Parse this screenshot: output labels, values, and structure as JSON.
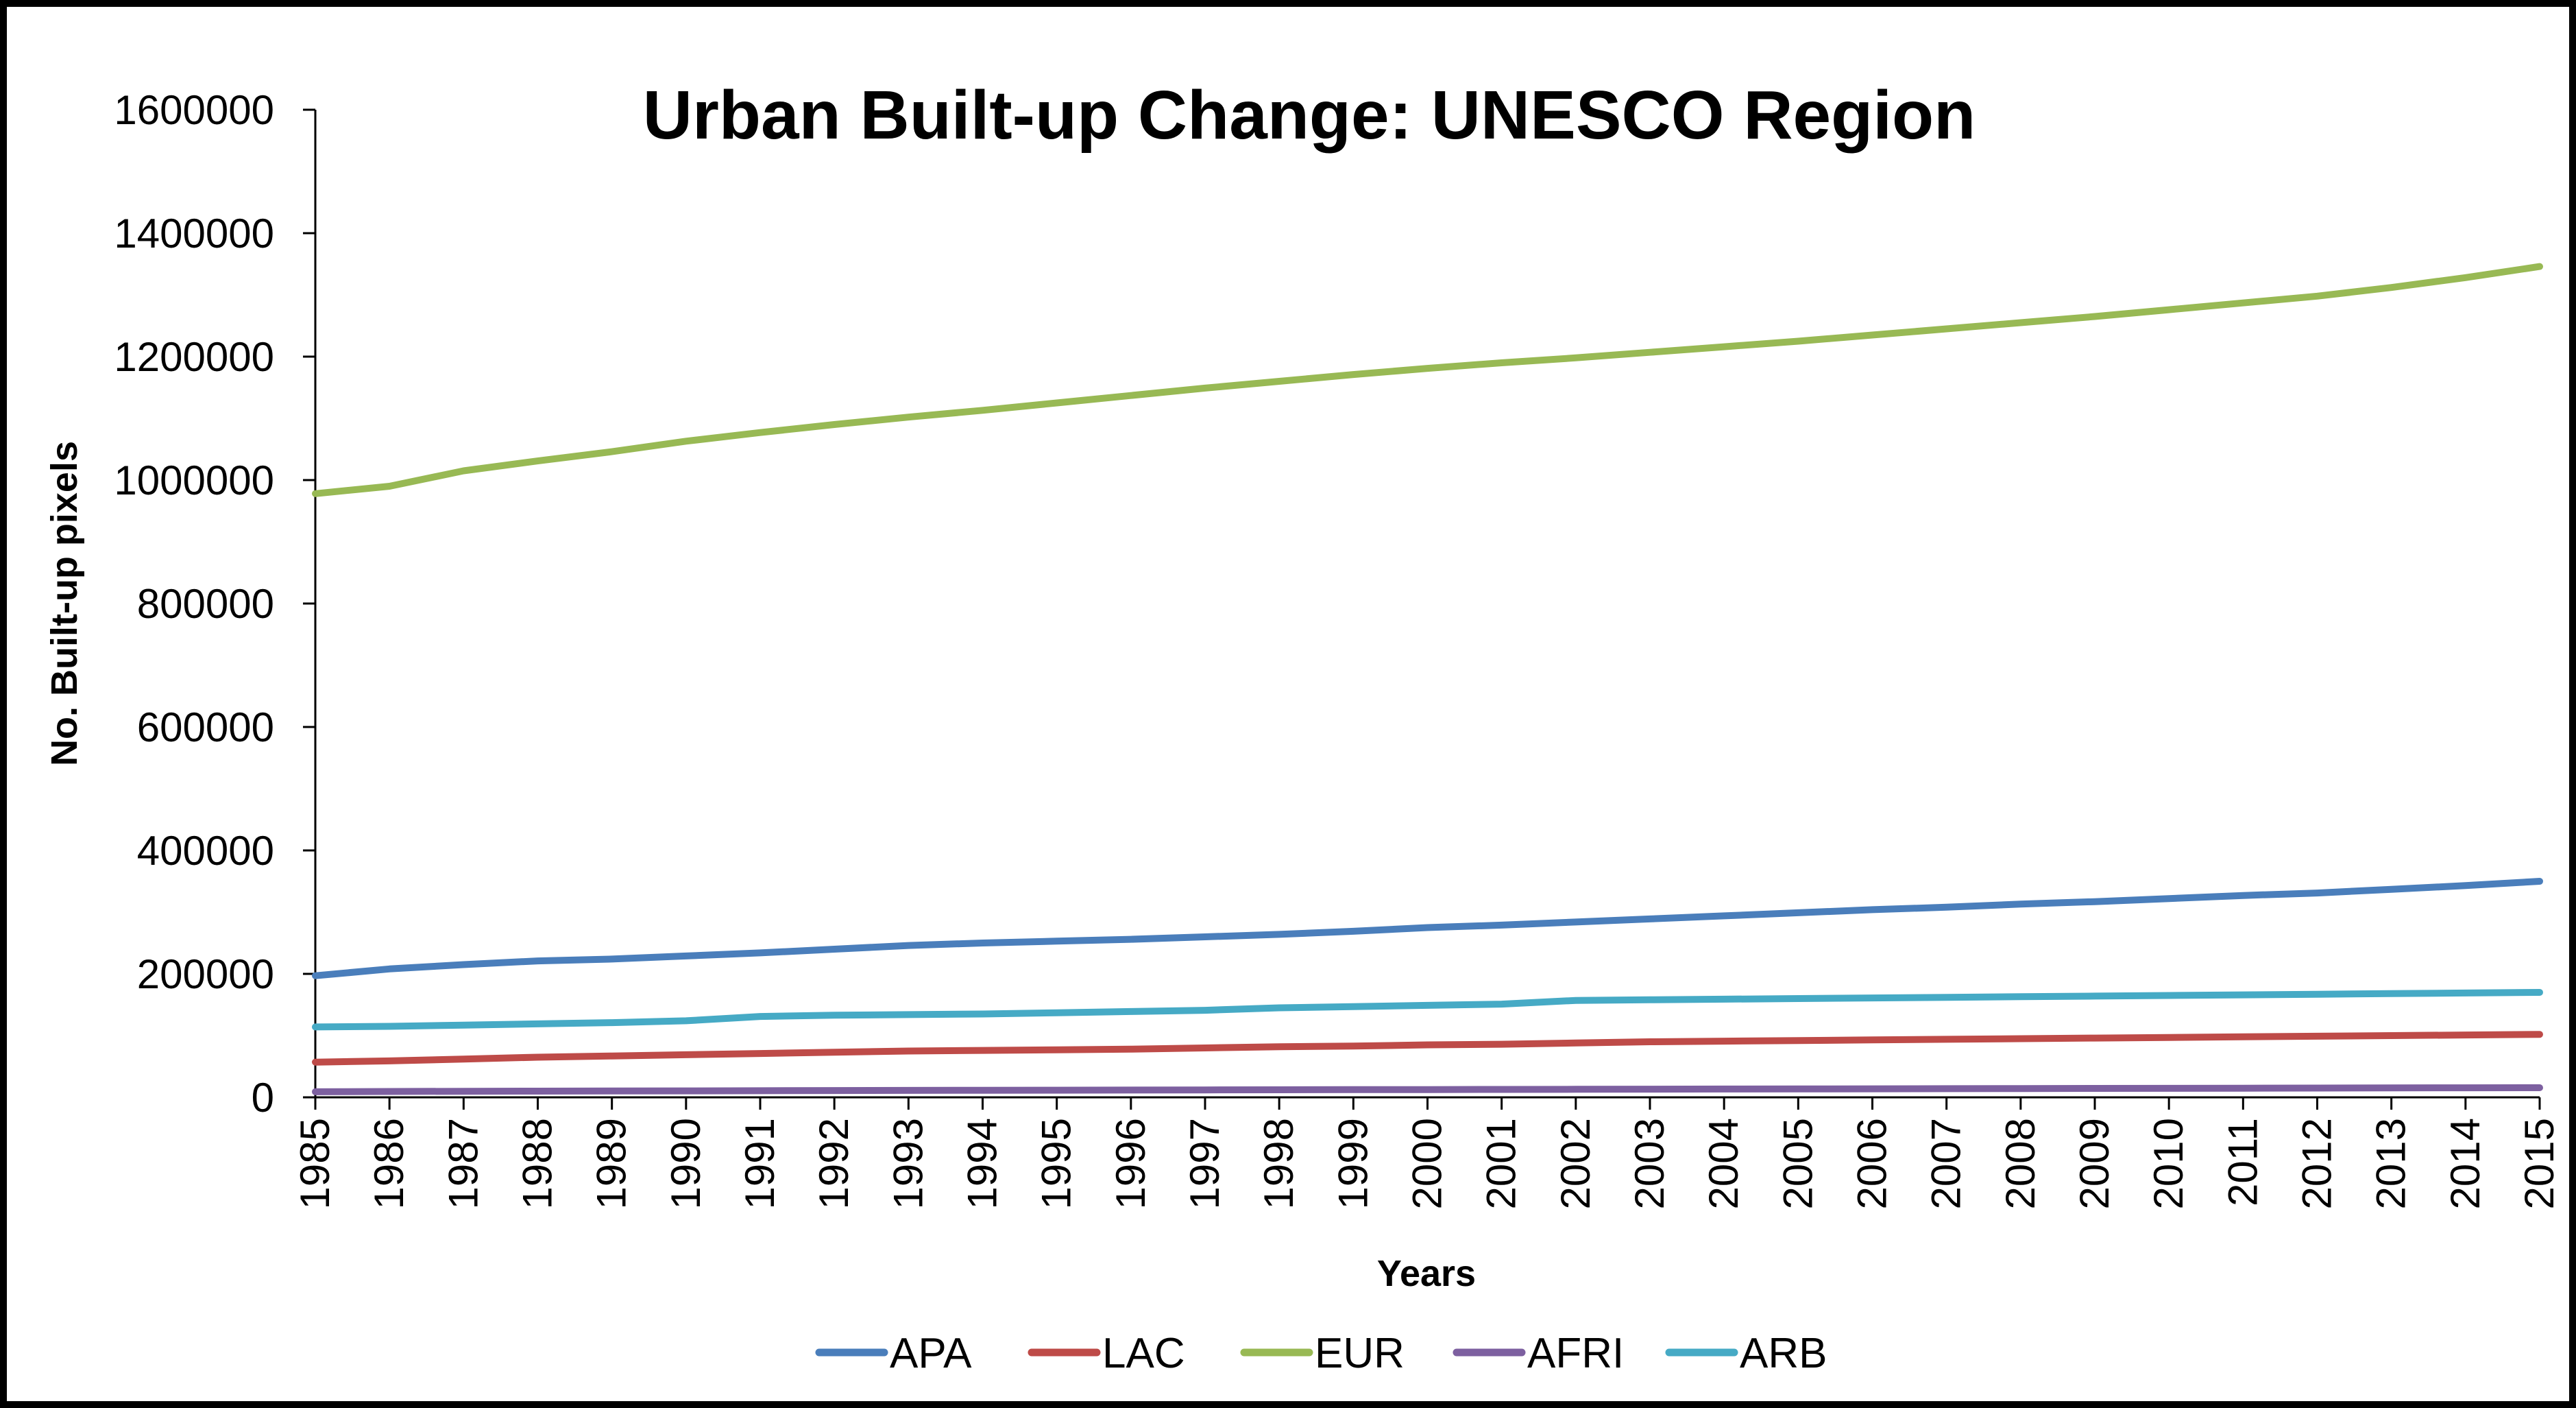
{
  "chart_data": {
    "type": "line",
    "title": "Urban Built-up Change: UNESCO Region",
    "xlabel": "Years",
    "ylabel": "No. Built-up pixels",
    "ylim": [
      0,
      1600000
    ],
    "yticks": [
      "0",
      "200000",
      "400000",
      "600000",
      "800000",
      "1000000",
      "1200000",
      "1400000",
      "1600000"
    ],
    "grid": false,
    "legend_position": "bottom",
    "x": [
      "1985",
      "1986",
      "1987",
      "1988",
      "1989",
      "1990",
      "1991",
      "1992",
      "1993",
      "1994",
      "1995",
      "1996",
      "1997",
      "1998",
      "1999",
      "2000",
      "2001",
      "2002",
      "2003",
      "2004",
      "2005",
      "2006",
      "2007",
      "2008",
      "2009",
      "2010",
      "2011",
      "2012",
      "2013",
      "2014",
      "2015"
    ],
    "series": [
      {
        "name": "APA",
        "color": "#4a7ebb",
        "values": [
          197000,
          208000,
          215000,
          221000,
          224000,
          229000,
          234000,
          240000,
          246000,
          250000,
          253000,
          256000,
          260000,
          264000,
          269000,
          275000,
          279000,
          284000,
          289000,
          294000,
          299000,
          304000,
          308000,
          313000,
          317000,
          322000,
          327000,
          331000,
          337000,
          343000,
          350000
        ]
      },
      {
        "name": "LAC",
        "color": "#be4b48",
        "values": [
          57000,
          59000,
          62000,
          65000,
          67000,
          69000,
          71000,
          73000,
          75000,
          76000,
          77000,
          78000,
          80000,
          82000,
          83000,
          85000,
          86000,
          88000,
          90000,
          91000,
          92000,
          93000,
          94000,
          95000,
          96000,
          97000,
          98000,
          99000,
          100000,
          101000,
          102000
        ]
      },
      {
        "name": "EUR",
        "color": "#98b954",
        "values": [
          978000,
          990000,
          1015000,
          1031000,
          1046000,
          1063000,
          1077000,
          1090000,
          1102000,
          1113000,
          1125000,
          1137000,
          1149000,
          1160000,
          1171000,
          1181000,
          1190000,
          1198000,
          1207000,
          1216000,
          1225000,
          1235000,
          1245000,
          1255000,
          1265000,
          1276000,
          1287000,
          1298000,
          1312000,
          1328000,
          1346000
        ]
      },
      {
        "name": "AFRI",
        "color": "#7d60a0",
        "values": [
          9000,
          9500,
          9800,
          10000,
          10200,
          10400,
          10700,
          11000,
          11200,
          11400,
          11600,
          11800,
          12000,
          12200,
          12400,
          12600,
          12800,
          13000,
          13200,
          13400,
          13600,
          13800,
          14000,
          14200,
          14400,
          14600,
          14800,
          15000,
          15200,
          15400,
          15600
        ]
      },
      {
        "name": "ARB",
        "color": "#46aac5",
        "values": [
          114000,
          115000,
          117000,
          119000,
          121000,
          124000,
          131000,
          133000,
          134000,
          135000,
          137000,
          139000,
          141000,
          145000,
          147000,
          149000,
          151000,
          157000,
          158000,
          159000,
          160000,
          161000,
          162000,
          163000,
          164000,
          165000,
          166000,
          167000,
          168000,
          169000,
          170000
        ]
      }
    ]
  }
}
